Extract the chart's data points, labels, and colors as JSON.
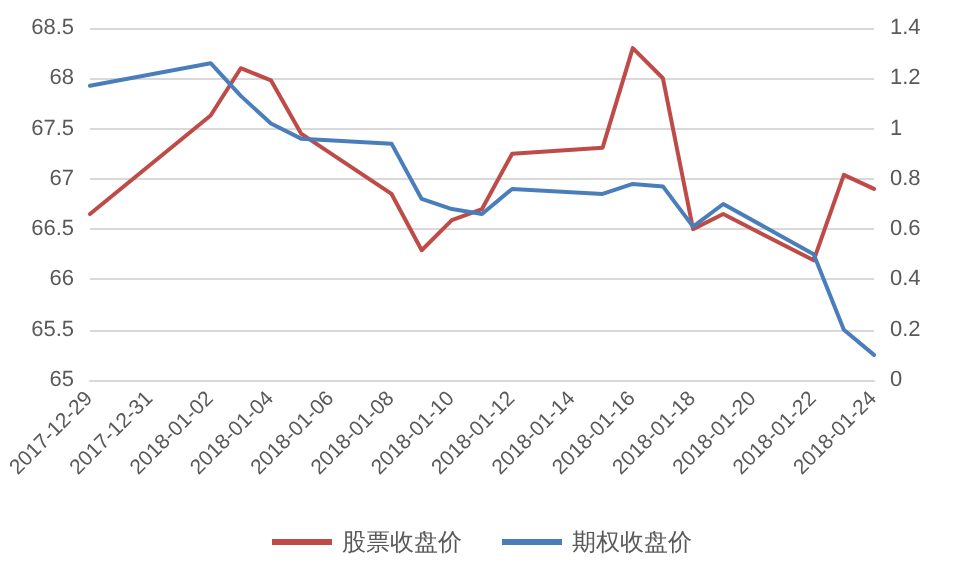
{
  "chart_data": {
    "type": "line",
    "x": [
      "2017-12-29",
      "2018-01-02",
      "2018-01-03",
      "2018-01-04",
      "2018-01-05",
      "2018-01-08",
      "2018-01-09",
      "2018-01-10",
      "2018-01-11",
      "2018-01-12",
      "2018-01-15",
      "2018-01-16",
      "2018-01-17",
      "2018-01-18",
      "2018-01-19",
      "2018-01-22",
      "2018-01-23",
      "2018-01-24"
    ],
    "series": [
      {
        "name": "股票收盘价",
        "color": "#be4b48",
        "values": [
          66.65,
          67.63,
          68.1,
          67.98,
          67.45,
          66.85,
          66.29,
          66.59,
          66.7,
          67.25,
          67.31,
          68.3,
          68.0,
          66.5,
          66.65,
          66.19,
          67.04,
          66.9
        ]
      },
      {
        "name": "期权收盘价",
        "color": "#4a7ebb",
        "axis": "y2",
        "values": [
          1.17,
          1.26,
          1.13,
          1.02,
          0.96,
          0.94,
          0.72,
          0.68,
          0.66,
          0.76,
          0.74,
          0.78,
          0.77,
          0.61,
          0.7,
          0.5,
          0.2,
          0.1
        ]
      }
    ],
    "xlim": [
      "2017-12-29",
      "2018-01-24"
    ],
    "xticks": [
      "2017-12-29",
      "2017-12-31",
      "2018-01-02",
      "2018-01-04",
      "2018-01-06",
      "2018-01-08",
      "2018-01-10",
      "2018-01-12",
      "2018-01-14",
      "2018-01-16",
      "2018-01-18",
      "2018-01-20",
      "2018-01-22",
      "2018-01-24"
    ],
    "ylim": [
      65,
      68.5
    ],
    "yticks": [
      65,
      65.5,
      66,
      66.5,
      67,
      67.5,
      68,
      68.5
    ],
    "y2lim": [
      0,
      1.4
    ],
    "y2ticks": [
      0,
      0.2,
      0.4,
      0.6,
      0.8,
      1,
      1.2,
      1.4
    ],
    "grid": "y",
    "legend": "bottom",
    "marker": "none",
    "line_style": "solid"
  }
}
